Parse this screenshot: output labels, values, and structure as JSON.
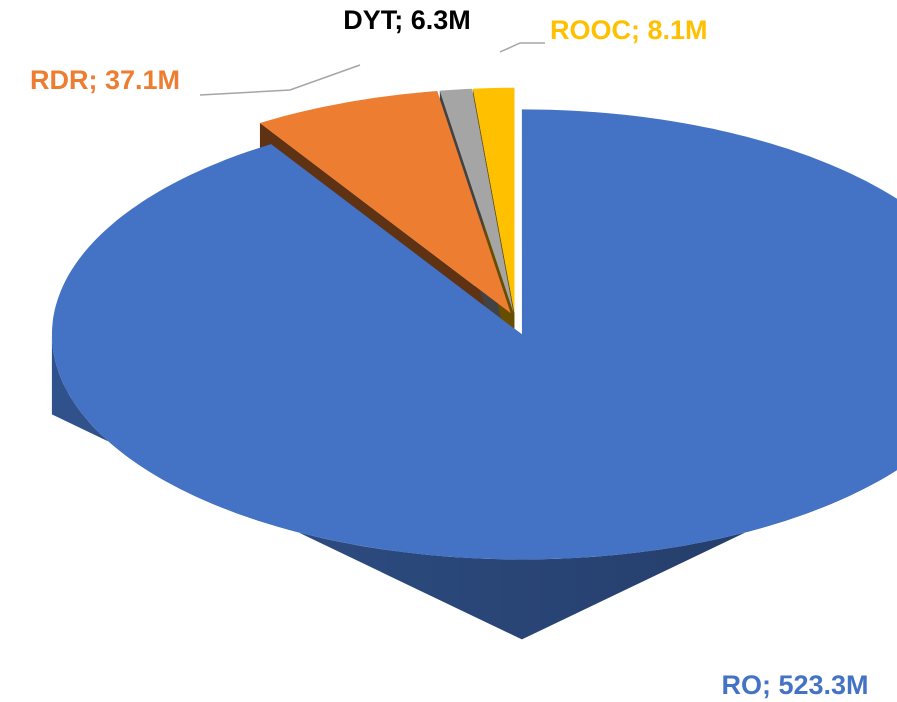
{
  "chart_data": {
    "type": "pie3d",
    "labels": [
      "RO; 523.3M",
      "RDR; 37.1M",
      "DYT; 6.3M",
      "ROOC; 8.1M"
    ],
    "values": [
      523.3,
      37.1,
      6.3,
      8.1
    ],
    "colors": [
      "#4472c4",
      "#ed7d31",
      "#a5a5a5",
      "#ffc000"
    ],
    "label_colors": [
      "#4472c4",
      "#ed7d31",
      "#000000",
      "#ffc000"
    ]
  }
}
